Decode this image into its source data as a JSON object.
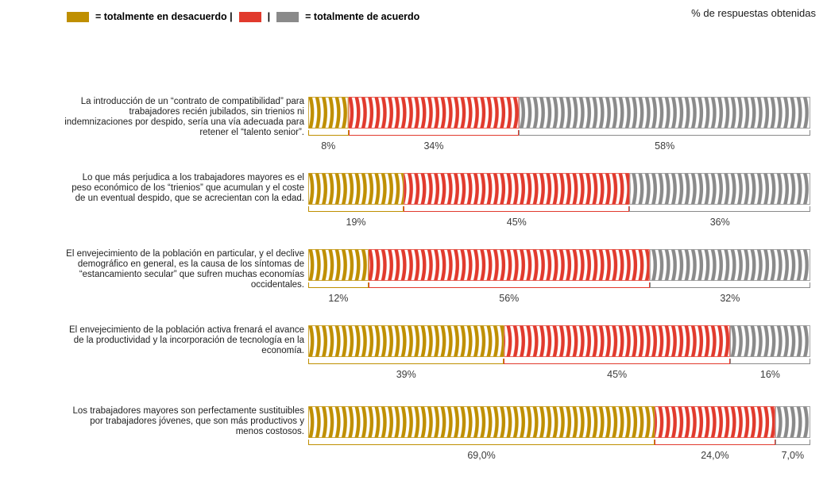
{
  "header": {
    "note": "% de respuestas obtenidas"
  },
  "legend": {
    "items": [
      {
        "name": "totalmente en desacuerdo",
        "swatch": "#BF8F00",
        "label": "= totalmente en desacuerdo |"
      },
      {
        "name": "",
        "swatch": "#E13A2D",
        "label": "|"
      },
      {
        "name": "totalmente de acuerdo",
        "swatch": "#8A8A8A",
        "label": "= totalmente de acuerdo"
      }
    ]
  },
  "chart_data": {
    "type": "bar",
    "stacked": true,
    "orientation": "horizontal",
    "unit": "% de respuestas obtenidas",
    "xlim": [
      0,
      100
    ],
    "categories": [
      "La introducción de un “contrato de compatibilidad” para trabajadores recién jubilados, sin trienios ni indemnizaciones por despido, sería una vía adecuada para retener el “talento senior”.",
      "Lo que más perjudica a los trabajadores mayores es el peso económico de los “trienios” que acumulan y el coste de un eventual despido, que se acrecientan con la edad.",
      "El envejecimiento de la población en particular, y el declive demográfico en general, es la causa de los síntomas de “estancamiento secular” que sufren muchas economías occidentales.",
      "El envejecimiento de la población activa frenará el avance de la productividad y la incorporación de tecnología en la economía.",
      "Los trabajadores mayores son perfectamente sustituibles por trabajadores jóvenes, que son más productivos y menos costosos."
    ],
    "series": [
      {
        "name": "totalmente en desacuerdo",
        "color": "#BF8F00",
        "values": [
          8,
          19,
          12,
          39,
          69
        ]
      },
      {
        "name": "",
        "color": "#E13A2D",
        "values": [
          34,
          45,
          56,
          45,
          24
        ]
      },
      {
        "name": "totalmente de acuerdo",
        "color": "#8A8A8A",
        "values": [
          58,
          36,
          32,
          16,
          7
        ]
      }
    ],
    "value_labels": [
      [
        "8%",
        "34%",
        "58%"
      ],
      [
        "19%",
        "45%",
        "36%"
      ],
      [
        "12%",
        "56%",
        "32%"
      ],
      [
        "39%",
        "45%",
        "16%"
      ],
      [
        "69,0%",
        "24,0%",
        "7,0%"
      ]
    ]
  }
}
